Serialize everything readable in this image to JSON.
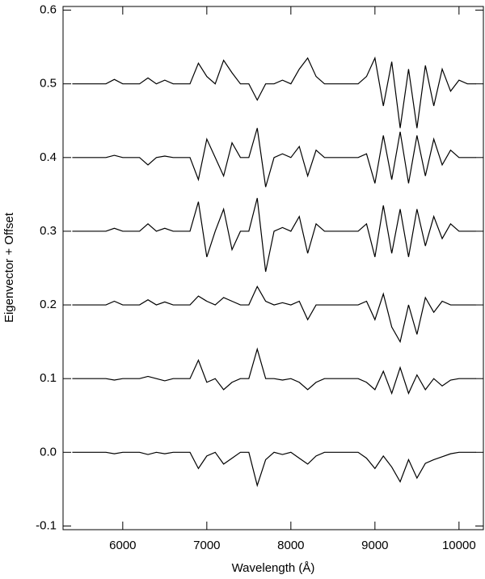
{
  "chart_data": {
    "type": "line",
    "x_label": "Wavelength (Å)",
    "y_label": "Eigenvector + Offset",
    "x": [
      5400,
      5500,
      5600,
      5700,
      5800,
      5900,
      6000,
      6100,
      6200,
      6300,
      6400,
      6500,
      6600,
      6700,
      6800,
      6900,
      7000,
      7100,
      7200,
      7300,
      7400,
      7500,
      7600,
      7700,
      7800,
      7900,
      8000,
      8100,
      8200,
      8300,
      8400,
      8500,
      8600,
      8700,
      8800,
      8900,
      9000,
      9100,
      9200,
      9300,
      9400,
      9500,
      9600,
      9700,
      9800,
      9900,
      10000,
      10100,
      10200
    ],
    "series": [
      {
        "color": "#000000",
        "values": [
          0.5,
          0.5,
          0.5,
          0.5,
          0.5,
          0.506,
          0.5,
          0.5,
          0.5,
          0.508,
          0.5,
          0.505,
          0.5,
          0.5,
          0.5,
          0.528,
          0.51,
          0.5,
          0.532,
          0.515,
          0.5,
          0.5,
          0.478,
          0.5,
          0.5,
          0.505,
          0.5,
          0.52,
          0.535,
          0.51,
          0.5,
          0.5,
          0.5,
          0.5,
          0.5,
          0.51,
          0.535,
          0.47,
          0.53,
          0.44,
          0.52,
          0.44,
          0.525,
          0.47,
          0.52,
          0.49,
          0.505,
          0.5,
          0.5
        ]
      },
      {
        "color": "#000000",
        "values": [
          0.4,
          0.4,
          0.4,
          0.4,
          0.4,
          0.403,
          0.4,
          0.4,
          0.4,
          0.39,
          0.4,
          0.402,
          0.4,
          0.4,
          0.4,
          0.37,
          0.425,
          0.4,
          0.375,
          0.42,
          0.4,
          0.4,
          0.44,
          0.36,
          0.4,
          0.405,
          0.4,
          0.415,
          0.375,
          0.41,
          0.4,
          0.4,
          0.4,
          0.4,
          0.4,
          0.405,
          0.365,
          0.43,
          0.37,
          0.435,
          0.365,
          0.43,
          0.375,
          0.425,
          0.39,
          0.41,
          0.4,
          0.4,
          0.4
        ]
      },
      {
        "color": "#000000",
        "values": [
          0.3,
          0.3,
          0.3,
          0.3,
          0.3,
          0.304,
          0.3,
          0.3,
          0.3,
          0.31,
          0.3,
          0.304,
          0.3,
          0.3,
          0.3,
          0.34,
          0.265,
          0.3,
          0.33,
          0.275,
          0.3,
          0.3,
          0.345,
          0.245,
          0.3,
          0.305,
          0.3,
          0.32,
          0.27,
          0.31,
          0.3,
          0.3,
          0.3,
          0.3,
          0.3,
          0.31,
          0.265,
          0.335,
          0.27,
          0.33,
          0.265,
          0.33,
          0.28,
          0.32,
          0.29,
          0.31,
          0.3,
          0.3,
          0.3
        ]
      },
      {
        "color": "#000000",
        "values": [
          0.2,
          0.2,
          0.2,
          0.2,
          0.2,
          0.205,
          0.2,
          0.2,
          0.2,
          0.207,
          0.2,
          0.204,
          0.2,
          0.2,
          0.2,
          0.212,
          0.205,
          0.2,
          0.21,
          0.205,
          0.2,
          0.2,
          0.225,
          0.205,
          0.2,
          0.203,
          0.2,
          0.205,
          0.18,
          0.2,
          0.2,
          0.2,
          0.2,
          0.2,
          0.2,
          0.205,
          0.18,
          0.215,
          0.17,
          0.15,
          0.2,
          0.16,
          0.21,
          0.19,
          0.205,
          0.2,
          0.2,
          0.2,
          0.2
        ]
      },
      {
        "color": "#000000",
        "values": [
          0.1,
          0.1,
          0.1,
          0.1,
          0.1,
          0.098,
          0.1,
          0.1,
          0.1,
          0.103,
          0.1,
          0.097,
          0.1,
          0.1,
          0.1,
          0.125,
          0.095,
          0.1,
          0.085,
          0.095,
          0.1,
          0.1,
          0.14,
          0.1,
          0.1,
          0.098,
          0.1,
          0.095,
          0.085,
          0.095,
          0.1,
          0.1,
          0.1,
          0.1,
          0.1,
          0.095,
          0.085,
          0.11,
          0.08,
          0.115,
          0.08,
          0.105,
          0.085,
          0.1,
          0.09,
          0.098,
          0.1,
          0.1,
          0.1
        ]
      },
      {
        "color": "#000000",
        "values": [
          0,
          0,
          0,
          0,
          0,
          -0.002,
          0,
          0,
          0,
          -0.003,
          0,
          -0.002,
          0,
          0,
          0,
          -0.022,
          -0.005,
          0,
          -0.016,
          -0.008,
          0,
          0,
          -0.045,
          -0.01,
          0,
          -0.003,
          0,
          -0.008,
          -0.016,
          -0.005,
          0,
          0,
          0,
          0,
          0,
          -0.008,
          -0.022,
          -0.005,
          -0.02,
          -0.04,
          -0.01,
          -0.035,
          -0.015,
          -0.01,
          -0.006,
          -0.002,
          0,
          0,
          0
        ]
      }
    ],
    "xlim": [
      5290,
      10290
    ],
    "xticks": [
      6000,
      7000,
      8000,
      9000,
      10000
    ],
    "ylim": [
      -0.105,
      0.605
    ],
    "yticks": [
      {
        "value": -0.1,
        "label": "-0.1"
      },
      {
        "value": 0,
        "label": "0.0"
      },
      0.1,
      0.2,
      0.3,
      0.4,
      0.5,
      0.6
    ]
  }
}
